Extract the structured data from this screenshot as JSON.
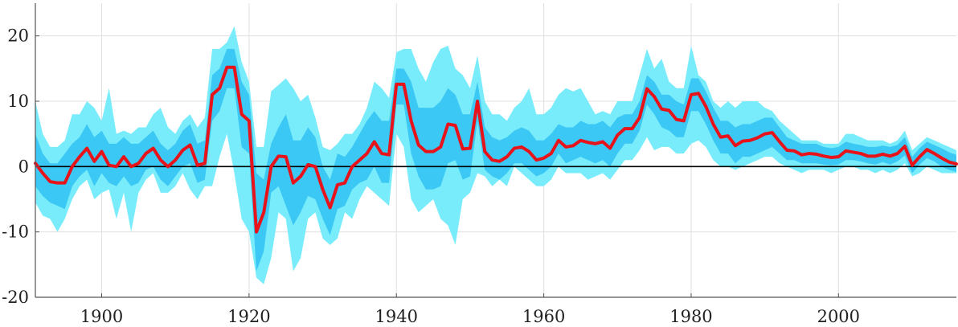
{
  "chart_data": {
    "type": "area",
    "title": "",
    "xlabel": "",
    "ylabel": "",
    "xlim": [
      1891,
      2016
    ],
    "ylim": [
      -20,
      25
    ],
    "xticks": [
      1900,
      1920,
      1940,
      1960,
      1980,
      2000
    ],
    "yticks": [
      -20,
      -10,
      0,
      10,
      20
    ],
    "xtick_labels": [
      "1900",
      "1920",
      "1940",
      "1960",
      "1980",
      "2000"
    ],
    "ytick_labels": [
      "-20",
      "-10",
      "0",
      "10",
      "20"
    ],
    "grid": true,
    "legend": "none",
    "colors": {
      "line": "#e8121a",
      "inner_band": "#3cc8f4",
      "outer_band": "#78ecfb",
      "zero_line": "#000000",
      "grid": "#e0e0e0",
      "axis": "#555555"
    },
    "x": [
      1891,
      1892,
      1893,
      1894,
      1895,
      1896,
      1897,
      1898,
      1899,
      1900,
      1901,
      1902,
      1903,
      1904,
      1905,
      1906,
      1907,
      1908,
      1909,
      1910,
      1911,
      1912,
      1913,
      1914,
      1915,
      1916,
      1917,
      1918,
      1919,
      1920,
      1921,
      1922,
      1923,
      1924,
      1925,
      1926,
      1927,
      1928,
      1929,
      1930,
      1931,
      1932,
      1933,
      1934,
      1935,
      1936,
      1937,
      1938,
      1939,
      1940,
      1941,
      1942,
      1943,
      1944,
      1945,
      1946,
      1947,
      1948,
      1949,
      1950,
      1951,
      1952,
      1953,
      1954,
      1955,
      1956,
      1957,
      1958,
      1959,
      1960,
      1961,
      1962,
      1963,
      1964,
      1965,
      1966,
      1967,
      1968,
      1969,
      1970,
      1971,
      1972,
      1973,
      1974,
      1975,
      1976,
      1977,
      1978,
      1979,
      1980,
      1981,
      1982,
      1983,
      1984,
      1985,
      1986,
      1987,
      1988,
      1989,
      1990,
      1991,
      1992,
      1993,
      1994,
      1995,
      1996,
      1997,
      1998,
      1999,
      2000,
      2001,
      2002,
      2003,
      2004,
      2005,
      2006,
      2007,
      2008,
      2009,
      2010,
      2011,
      2012,
      2013,
      2014,
      2015,
      2016
    ],
    "series": [
      {
        "role": "central",
        "values": [
          0.5,
          -1.0,
          -2.3,
          -2.5,
          -2.5,
          0.0,
          1.5,
          2.8,
          0.8,
          2.3,
          0.2,
          0.0,
          1.5,
          0.0,
          0.5,
          2.0,
          2.8,
          1.0,
          0.0,
          1.0,
          2.5,
          3.3,
          0.2,
          0.5,
          11.0,
          12.0,
          15.2,
          15.2,
          8.0,
          7.0,
          -10.0,
          -7.0,
          0.0,
          1.6,
          1.5,
          -2.5,
          -1.5,
          0.3,
          0.0,
          -3.5,
          -6.3,
          -2.8,
          -2.5,
          0.0,
          1.0,
          2.0,
          3.8,
          2.0,
          1.8,
          12.6,
          12.6,
          7.0,
          3.3,
          2.3,
          2.3,
          3.0,
          6.5,
          6.3,
          2.7,
          2.8,
          10.0,
          2.3,
          1.0,
          0.8,
          1.5,
          2.8,
          3.0,
          2.3,
          1.0,
          1.3,
          2.0,
          4.0,
          3.0,
          3.2,
          4.0,
          3.7,
          3.5,
          3.8,
          2.8,
          4.8,
          5.8,
          5.8,
          7.5,
          11.9,
          10.7,
          8.8,
          8.6,
          7.2,
          7.0,
          11.0,
          11.2,
          9.2,
          6.5,
          4.5,
          4.7,
          3.2,
          3.9,
          4.0,
          4.4,
          5.0,
          5.2,
          3.8,
          2.5,
          2.4,
          1.8,
          2.0,
          1.9,
          1.6,
          1.4,
          1.5,
          2.4,
          2.2,
          2.0,
          1.6,
          1.6,
          1.9,
          1.6,
          2.0,
          3.1,
          0.2,
          1.5,
          2.6,
          2.0,
          1.3,
          0.7,
          0.4
        ]
      },
      {
        "role": "inner_band_upper",
        "values": [
          5,
          2,
          0.5,
          0.5,
          2,
          3.5,
          4.5,
          6.5,
          4.5,
          5.5,
          3.5,
          3.5,
          4.5,
          3.5,
          3.5,
          4.5,
          5.5,
          3.5,
          2.5,
          3.5,
          5.5,
          6.5,
          3.5,
          4,
          14,
          15,
          18,
          18,
          13,
          11,
          -1,
          -2,
          3.5,
          6,
          8,
          4,
          4,
          6,
          4.5,
          0,
          -2,
          2,
          1.5,
          3,
          5,
          7,
          8.5,
          7,
          7,
          15,
          15,
          13,
          9,
          9,
          9,
          10,
          12,
          11,
          8,
          8,
          13,
          6,
          4.5,
          4,
          4.5,
          5.5,
          6,
          5.5,
          4,
          4,
          5,
          6.5,
          6,
          6,
          7,
          6.5,
          6.5,
          7,
          6,
          7.5,
          8,
          8,
          10,
          14,
          13,
          11,
          11,
          10,
          9.5,
          13.5,
          13.5,
          11.5,
          9,
          7,
          7,
          6,
          6.5,
          6.5,
          7,
          7.5,
          7.5,
          6,
          4.5,
          4,
          3.5,
          3.5,
          3.5,
          3,
          2.8,
          3,
          3.8,
          3.5,
          3.3,
          3,
          3,
          3.2,
          3,
          3.3,
          4.5,
          1.5,
          2.8,
          3.8,
          3.3,
          2.8,
          2.2,
          1.8
        ]
      },
      {
        "role": "inner_band_lower",
        "values": [
          -3,
          -4.5,
          -5.5,
          -6,
          -6.5,
          -3,
          -1.5,
          -0.5,
          -3,
          -1,
          -2.5,
          -3,
          -1.5,
          -3,
          -2.5,
          -0.5,
          0,
          -2,
          -3,
          -1.5,
          0,
          0.5,
          -2.5,
          -2,
          7,
          8.5,
          12,
          12,
          3,
          2,
          -16,
          -13,
          -4,
          -3,
          -6,
          -9,
          -7,
          -4.5,
          -5,
          -8,
          -10.5,
          -6.5,
          -6,
          -3.5,
          -2.5,
          -2,
          0,
          -2.5,
          -2.5,
          9.5,
          9.5,
          2,
          -1.5,
          -3.5,
          -3.5,
          -3,
          0.5,
          1,
          -2,
          -1.5,
          7,
          -0.5,
          -1.5,
          -2,
          -1,
          0.5,
          0.5,
          -0.5,
          -1.5,
          -1,
          0,
          2,
          0.5,
          1,
          1.5,
          1,
          0.5,
          1,
          0,
          2,
          3.5,
          3.5,
          5.5,
          9.5,
          8,
          6,
          5.5,
          4.5,
          4.5,
          8.5,
          8.5,
          6.5,
          4,
          2,
          2,
          0.5,
          1.5,
          1.5,
          2,
          2.5,
          3,
          2,
          1,
          1,
          0.5,
          0.5,
          0.5,
          0.3,
          0.2,
          0.3,
          1,
          1,
          0.8,
          0.5,
          0.3,
          0.7,
          0.3,
          0.8,
          1.7,
          -1,
          0.3,
          1.3,
          0.8,
          0,
          -0.5,
          -0.8
        ]
      },
      {
        "role": "outer_band_upper",
        "values": [
          10,
          5,
          3,
          3,
          4,
          8,
          8,
          10,
          9,
          7,
          12,
          5,
          5.5,
          5,
          6,
          6,
          8,
          9,
          6,
          5,
          7,
          8,
          6,
          7.5,
          18,
          18,
          19,
          21.5,
          16,
          13,
          3,
          3,
          11.5,
          12.5,
          13.5,
          12,
          10,
          11,
          7.5,
          3,
          2.5,
          3.5,
          5,
          5,
          6.5,
          9,
          13,
          12,
          10.5,
          17.5,
          18,
          18,
          15,
          13,
          16,
          18,
          18.5,
          15,
          14,
          12,
          17,
          10,
          8,
          8,
          7,
          9,
          10,
          12,
          8,
          8,
          9,
          11,
          12,
          11.5,
          12,
          10,
          8,
          8.5,
          8,
          10,
          10,
          10,
          14,
          18,
          15,
          16.5,
          13,
          12,
          12,
          18.5,
          14,
          13,
          10,
          9,
          10,
          9,
          10,
          10,
          10,
          9,
          8.5,
          7,
          6,
          5,
          4,
          4,
          4,
          3.5,
          3.5,
          3.5,
          5,
          5,
          4.5,
          4,
          4,
          4,
          3.5,
          4,
          5.5,
          2.5,
          3.5,
          4.5,
          4,
          3.5,
          3,
          2.5
        ]
      },
      {
        "role": "outer_band_lower",
        "values": [
          -5.5,
          -7.5,
          -8,
          -10,
          -8,
          -5,
          -3,
          -2,
          -5,
          -4,
          -3.5,
          -8,
          -4,
          -10,
          -4,
          -2,
          -1,
          -4,
          -4,
          -3,
          -1,
          -3.5,
          -5,
          -3,
          -3,
          1.5,
          5,
          -1,
          -8,
          -10,
          -17,
          -18,
          -14,
          -7,
          -8,
          -16,
          -14,
          -8,
          -7,
          -11,
          -12,
          -11,
          -7,
          -8,
          -5,
          -3,
          -4,
          -5,
          -6,
          5,
          3,
          -5,
          -7,
          -6,
          -5,
          -8,
          -9,
          -12,
          -5,
          -4,
          -1,
          -1.5,
          -3,
          -2,
          -3,
          0,
          -1,
          -2,
          -3,
          -3,
          -2,
          0,
          -1,
          -1,
          -1,
          -2,
          -1.5,
          -1,
          -2,
          -0.5,
          1,
          1,
          2.5,
          4.5,
          2.5,
          3,
          3,
          2,
          2,
          3.5,
          4,
          3,
          1,
          0,
          0,
          -0.5,
          0,
          0.5,
          1,
          1.5,
          1.5,
          0.5,
          0,
          -0.5,
          -1,
          -0.5,
          -0.5,
          -0.5,
          -1,
          -0.5,
          0,
          0,
          -0.5,
          -0.5,
          -1,
          -0.5,
          -1,
          -0.5,
          0.5,
          -1.5,
          -1,
          0,
          -0.5,
          -1,
          -1,
          -1
        ]
      }
    ]
  }
}
